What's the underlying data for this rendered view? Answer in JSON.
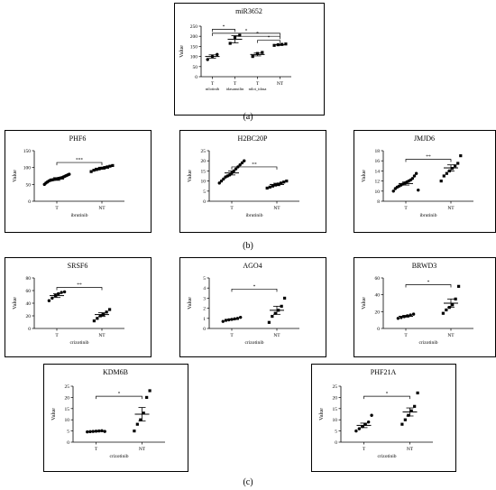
{
  "panel_labels": [
    "(a)",
    "(b)",
    "(c)"
  ],
  "chart_data": [
    {
      "type": "scatter",
      "title": "miR3652",
      "ylabel": "Value",
      "ylim": [
        0,
        250
      ],
      "yticks": [
        0,
        50,
        100,
        150,
        200,
        250
      ],
      "groups": [
        {
          "top": "T",
          "bottom": "nilotinib",
          "points": [
            85,
            100,
            110
          ],
          "mean": 100,
          "sem": 8
        },
        {
          "top": "T",
          "bottom": "idasanutlin",
          "points": [
            165,
            195,
            205
          ],
          "mean": 185,
          "sem": 18
        },
        {
          "top": "T",
          "bottom": "nilot_idasa",
          "points": [
            100,
            115,
            120
          ],
          "mean": 110,
          "sem": 7
        },
        {
          "top": "NT",
          "bottom": "",
          "points": [
            155,
            158,
            160,
            162
          ],
          "mean": 158,
          "sem": 3
        }
      ],
      "brackets": [
        {
          "from": 0,
          "to": 1,
          "level": 235,
          "label": "*"
        },
        {
          "from": 0,
          "to": 3,
          "level": 215,
          "label": "*"
        },
        {
          "from": 1,
          "to": 3,
          "level": 200,
          "label": "*"
        },
        {
          "from": 2,
          "to": 3,
          "level": 180,
          "label": "*"
        }
      ]
    },
    {
      "type": "scatter",
      "title": "PHF6",
      "ylabel": "Value",
      "xlabel": "ibrutinib",
      "ylim": [
        0,
        150
      ],
      "yticks": [
        0,
        50,
        100,
        150
      ],
      "groups": [
        {
          "top": "T",
          "bottom": "",
          "points": [
            50,
            54,
            57,
            60,
            62,
            63,
            64,
            65,
            66,
            67,
            68,
            69,
            70,
            72,
            74,
            76,
            78,
            80
          ],
          "mean": 66,
          "sem": 4
        },
        {
          "top": "NT",
          "bottom": "",
          "points": [
            88,
            92,
            94,
            96,
            98,
            100,
            102,
            104,
            106
          ],
          "mean": 98,
          "sem": 3
        }
      ],
      "brackets": [
        {
          "from": 0,
          "to": 1,
          "level": 115,
          "label": "***"
        }
      ]
    },
    {
      "type": "scatter",
      "title": "H2BC20P",
      "ylabel": "Value",
      "xlabel": "ibrutinib",
      "ylim": [
        0,
        25
      ],
      "yticks": [
        0,
        5,
        10,
        15,
        20,
        25
      ],
      "groups": [
        {
          "top": "T",
          "bottom": "",
          "points": [
            9,
            10,
            11,
            12,
            12.5,
            13,
            14,
            15,
            16,
            17,
            18,
            19,
            20
          ],
          "mean": 14,
          "sem": 1
        },
        {
          "top": "NT",
          "bottom": "",
          "points": [
            6.5,
            7,
            7.5,
            8,
            8.5,
            9,
            9.5,
            10
          ],
          "mean": 8.3,
          "sem": 0.6
        }
      ],
      "brackets": [
        {
          "from": 0,
          "to": 1,
          "level": 17,
          "label": "**"
        }
      ]
    },
    {
      "type": "scatter",
      "title": "JMJD6",
      "ylabel": "Value",
      "xlabel": "ibrutinib",
      "ylim": [
        8,
        18
      ],
      "yticks": [
        8,
        10,
        12,
        14,
        16,
        18
      ],
      "groups": [
        {
          "top": "T",
          "bottom": "",
          "points": [
            10,
            10.5,
            10.8,
            11,
            11.2,
            11.4,
            11.6,
            11.8,
            12,
            12.2,
            12.5,
            13,
            13.5,
            10.2
          ],
          "mean": 11.5,
          "sem": 0.3
        },
        {
          "top": "NT",
          "bottom": "",
          "points": [
            12,
            13,
            13.5,
            14,
            14.5,
            15,
            15.5,
            17
          ],
          "mean": 14.6,
          "sem": 0.6
        }
      ],
      "brackets": [
        {
          "from": 0,
          "to": 1,
          "level": 16.3,
          "label": "**"
        }
      ]
    },
    {
      "type": "scatter",
      "title": "SRSF6",
      "ylabel": "Value",
      "xlabel": "crizotinib",
      "ylim": [
        0,
        80
      ],
      "yticks": [
        0,
        20,
        40,
        60,
        80
      ],
      "groups": [
        {
          "top": "T",
          "bottom": "",
          "points": [
            44,
            48,
            52,
            55,
            57,
            58
          ],
          "mean": 52,
          "sem": 3
        },
        {
          "top": "NT",
          "bottom": "",
          "points": [
            12,
            16,
            20,
            22,
            26,
            30
          ],
          "mean": 22,
          "sem": 3
        }
      ],
      "brackets": [
        {
          "from": 0,
          "to": 1,
          "level": 65,
          "label": "**"
        }
      ]
    },
    {
      "type": "scatter",
      "title": "AGO4",
      "ylabel": "Value",
      "xlabel": "crizotinib",
      "ylim": [
        0,
        5
      ],
      "yticks": [
        0,
        1,
        2,
        3,
        4,
        5
      ],
      "groups": [
        {
          "top": "T",
          "bottom": "",
          "points": [
            0.7,
            0.8,
            0.85,
            0.9,
            0.95,
            1.0,
            1.1
          ],
          "mean": 0.9,
          "sem": 0.05
        },
        {
          "top": "NT",
          "bottom": "",
          "points": [
            0.6,
            1.2,
            1.5,
            1.8,
            2.2,
            3.0
          ],
          "mean": 1.8,
          "sem": 0.4
        }
      ],
      "brackets": [
        {
          "from": 0,
          "to": 1,
          "level": 3.9,
          "label": "*"
        }
      ]
    },
    {
      "type": "scatter",
      "title": "BRWD3",
      "ylabel": "Value",
      "xlabel": "crizotinib",
      "ylim": [
        0,
        60
      ],
      "yticks": [
        0,
        20,
        40,
        60
      ],
      "groups": [
        {
          "top": "T",
          "bottom": "",
          "points": [
            12,
            13,
            14,
            15,
            16,
            17
          ],
          "mean": 14.5,
          "sem": 1
        },
        {
          "top": "NT",
          "bottom": "",
          "points": [
            18,
            22,
            25,
            28,
            35,
            50
          ],
          "mean": 30,
          "sem": 5
        }
      ],
      "brackets": [
        {
          "from": 0,
          "to": 1,
          "level": 52,
          "label": "*"
        }
      ]
    },
    {
      "type": "scatter",
      "title": "KDM6B",
      "ylabel": "Value",
      "xlabel": "crizotinib",
      "ylim": [
        0,
        25
      ],
      "yticks": [
        0,
        5,
        10,
        15,
        20,
        25
      ],
      "groups": [
        {
          "top": "T",
          "bottom": "",
          "points": [
            4.6,
            4.7,
            4.8,
            4.9,
            5.0,
            5.1,
            4.8
          ],
          "mean": 4.8,
          "sem": 0.1
        },
        {
          "top": "NT",
          "bottom": "",
          "points": [
            5,
            8,
            10,
            13,
            20,
            23
          ],
          "mean": 12.5,
          "sem": 3
        }
      ],
      "brackets": [
        {
          "from": 0,
          "to": 1,
          "level": 20.5,
          "label": "*"
        }
      ]
    },
    {
      "type": "scatter",
      "title": "PHF21A",
      "ylabel": "Value",
      "xlabel": "crizotinib",
      "ylim": [
        0,
        25
      ],
      "yticks": [
        0,
        5,
        10,
        15,
        20,
        25
      ],
      "groups": [
        {
          "top": "T",
          "bottom": "",
          "points": [
            5,
            6,
            7,
            8,
            9,
            12
          ],
          "mean": 7.5,
          "sem": 1
        },
        {
          "top": "NT",
          "bottom": "",
          "points": [
            8,
            10,
            12,
            14,
            16,
            22
          ],
          "mean": 13.5,
          "sem": 1.8
        }
      ],
      "brackets": [
        {
          "from": 0,
          "to": 1,
          "level": 20.5,
          "label": "*"
        }
      ]
    }
  ]
}
